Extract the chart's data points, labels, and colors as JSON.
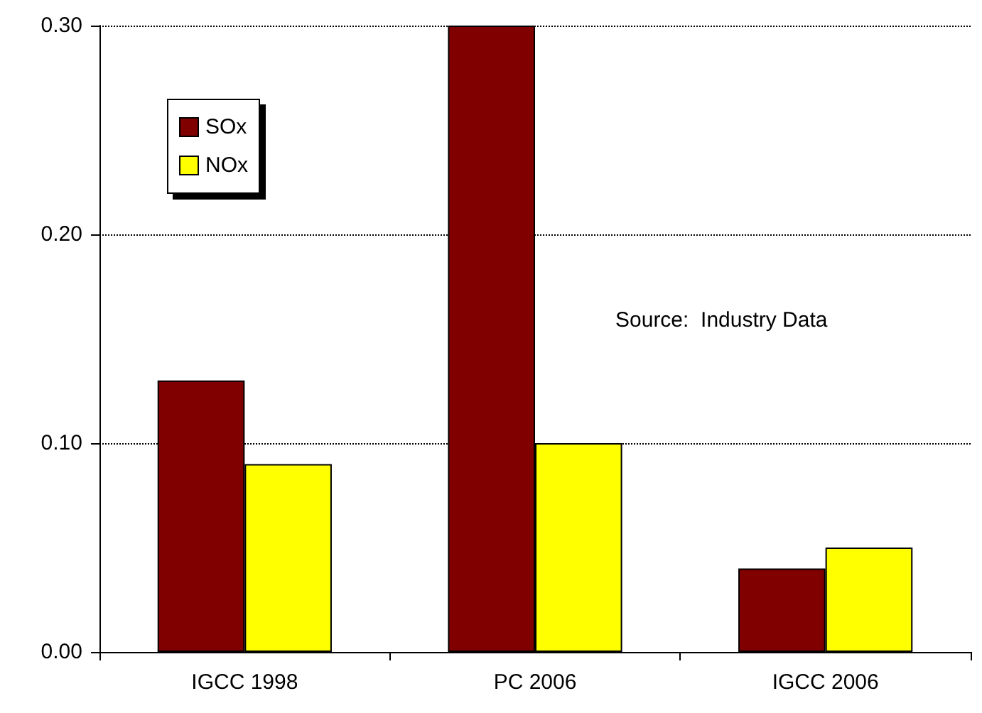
{
  "chart_data": {
    "type": "bar",
    "categories": [
      "IGCC 1998",
      "PC 2006",
      "IGCC 2006"
    ],
    "series": [
      {
        "name": "SOx",
        "color": "#800000",
        "values": [
          0.13,
          0.3,
          0.04
        ]
      },
      {
        "name": "NOx",
        "color": "#ffff00",
        "values": [
          0.09,
          0.1,
          0.05
        ]
      }
    ],
    "ylim": [
      0,
      0.3
    ],
    "yticks": [
      {
        "value": 0,
        "label": "0.00"
      },
      {
        "value": 0.1,
        "label": "0.10"
      },
      {
        "value": 0.2,
        "label": "0.20"
      },
      {
        "value": 0.3,
        "label": "0.30"
      }
    ],
    "grid": "y",
    "legend": "top left",
    "annotations": [
      "Source:  Industry Data"
    ]
  }
}
